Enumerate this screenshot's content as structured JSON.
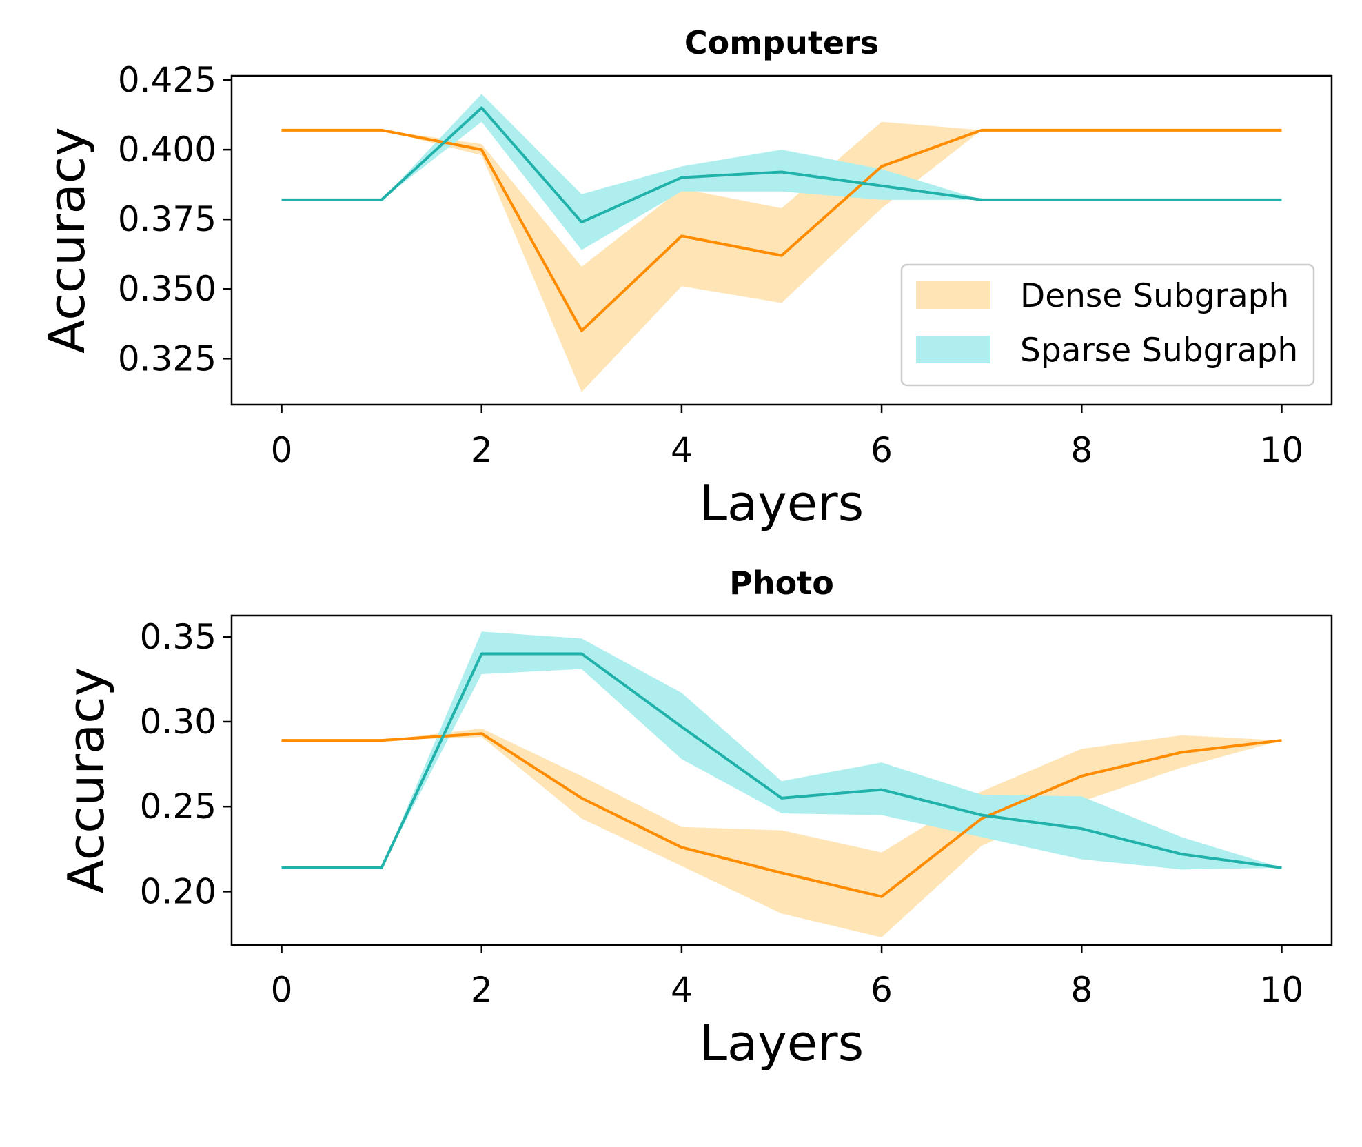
{
  "colors": {
    "dense_line": "#ff8c00",
    "dense_band": "#ffe4b5",
    "sparse_line": "#20b2aa",
    "sparse_band": "#afeeee"
  },
  "legend": {
    "placement": "center-right",
    "entries": [
      "Dense Subgraph",
      "Sparse Subgraph"
    ]
  },
  "chart_data": [
    {
      "type": "line",
      "title": "Computers",
      "xlabel": "Layers",
      "ylabel": "Accuracy",
      "xlim": [
        -0.5,
        10.5
      ],
      "ylim": [
        0.3085,
        0.4265
      ],
      "xticks": [
        "0",
        "2",
        "4",
        "6",
        "8",
        "10"
      ],
      "yticks": [
        "0.325",
        "0.350",
        "0.375",
        "0.400",
        "0.425"
      ],
      "x": [
        0,
        1,
        2,
        3,
        4,
        5,
        6,
        7,
        8,
        9,
        10
      ],
      "series": [
        {
          "name": "Dense Subgraph",
          "values": [
            0.407,
            0.407,
            0.4,
            0.335,
            0.369,
            0.362,
            0.394,
            0.407,
            0.407,
            0.407,
            0.407
          ],
          "lower": [
            0.407,
            0.407,
            0.398,
            0.313,
            0.351,
            0.345,
            0.379,
            0.407,
            0.407,
            0.407,
            0.407
          ],
          "upper": [
            0.407,
            0.407,
            0.402,
            0.358,
            0.386,
            0.379,
            0.41,
            0.407,
            0.407,
            0.407,
            0.407
          ]
        },
        {
          "name": "Sparse Subgraph",
          "values": [
            0.382,
            0.382,
            0.415,
            0.374,
            0.39,
            0.392,
            0.387,
            0.382,
            0.382,
            0.382,
            0.382
          ],
          "lower": [
            0.382,
            0.382,
            0.41,
            0.364,
            0.385,
            0.385,
            0.382,
            0.382,
            0.382,
            0.382,
            0.382
          ],
          "upper": [
            0.382,
            0.382,
            0.42,
            0.384,
            0.394,
            0.4,
            0.393,
            0.382,
            0.382,
            0.382,
            0.382
          ]
        }
      ]
    },
    {
      "type": "line",
      "title": "Photo",
      "xlabel": "Layers",
      "ylabel": "Accuracy",
      "xlim": [
        -0.5,
        10.5
      ],
      "ylim": [
        0.1685,
        0.3625
      ],
      "xticks": [
        "0",
        "2",
        "4",
        "6",
        "8",
        "10"
      ],
      "yticks": [
        "0.20",
        "0.25",
        "0.30",
        "0.35"
      ],
      "x": [
        0,
        1,
        2,
        3,
        4,
        5,
        6,
        7,
        8,
        9,
        10
      ],
      "series": [
        {
          "name": "Dense Subgraph",
          "values": [
            0.289,
            0.289,
            0.293,
            0.255,
            0.226,
            0.211,
            0.197,
            0.243,
            0.268,
            0.282,
            0.289
          ],
          "lower": [
            0.289,
            0.289,
            0.291,
            0.243,
            0.215,
            0.187,
            0.173,
            0.227,
            0.253,
            0.273,
            0.289
          ],
          "upper": [
            0.289,
            0.289,
            0.296,
            0.268,
            0.238,
            0.236,
            0.223,
            0.259,
            0.284,
            0.292,
            0.289
          ]
        },
        {
          "name": "Sparse Subgraph",
          "values": [
            0.214,
            0.214,
            0.34,
            0.34,
            0.297,
            0.255,
            0.26,
            0.245,
            0.237,
            0.222,
            0.214
          ],
          "lower": [
            0.214,
            0.214,
            0.328,
            0.331,
            0.278,
            0.246,
            0.245,
            0.232,
            0.219,
            0.213,
            0.214
          ],
          "upper": [
            0.214,
            0.214,
            0.353,
            0.349,
            0.317,
            0.265,
            0.276,
            0.257,
            0.256,
            0.232,
            0.214
          ]
        }
      ]
    }
  ]
}
